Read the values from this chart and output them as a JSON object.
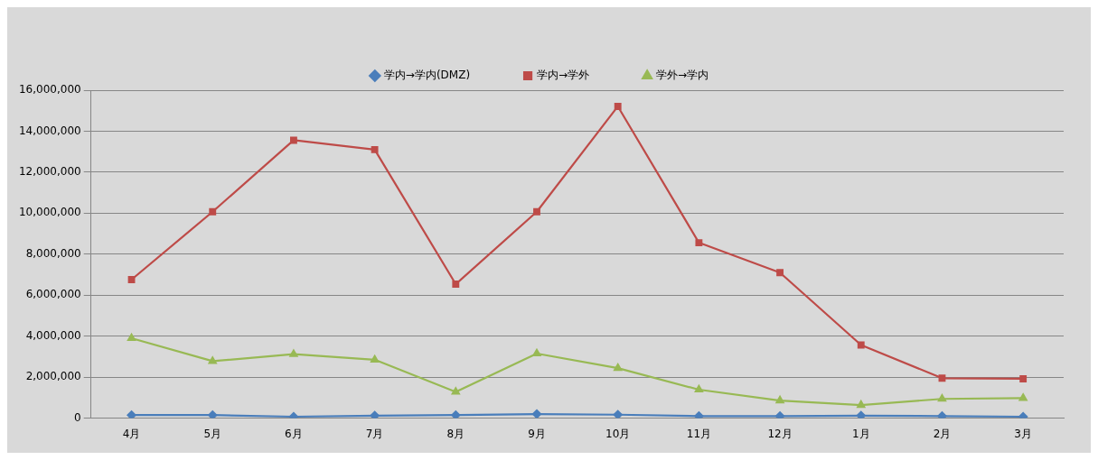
{
  "chart_data": {
    "type": "line",
    "categories": [
      "4月",
      "5月",
      "6月",
      "7月",
      "8月",
      "9月",
      "10月",
      "11月",
      "12月",
      "1月",
      "2月",
      "3月"
    ],
    "series": [
      {
        "name": "学内→学内(DMZ)",
        "color": "#4a7ebb",
        "marker": "diamond",
        "values": [
          150000,
          150000,
          70000,
          120000,
          150000,
          200000,
          170000,
          100000,
          100000,
          120000,
          100000,
          70000
        ]
      },
      {
        "name": "学内→学外",
        "color": "#be4b48",
        "marker": "square",
        "values": [
          6760000,
          10070000,
          13560000,
          13100000,
          6540000,
          10070000,
          15210000,
          8560000,
          7100000,
          3570000,
          1950000,
          1920000
        ]
      },
      {
        "name": "学外→学内",
        "color": "#98b954",
        "marker": "triangle",
        "values": [
          3900000,
          2780000,
          3120000,
          2850000,
          1280000,
          3150000,
          2440000,
          1390000,
          860000,
          640000,
          940000,
          980000
        ]
      }
    ],
    "ylim": [
      0,
      16000000
    ],
    "yticks": [
      0,
      {
        "value": 2000000,
        "label": "2,000,000"
      },
      {
        "value": 4000000,
        "label": "4,000,000"
      },
      {
        "value": 6000000,
        "label": "6,000,000"
      },
      {
        "value": 8000000,
        "label": "8,000,000"
      },
      {
        "value": 10000000,
        "label": "10,000,000"
      },
      {
        "value": 12000000,
        "label": "12,000,000"
      },
      {
        "value": 14000000,
        "label": "14,000,000"
      },
      {
        "value": 16000000,
        "label": "16,000,000"
      }
    ],
    "grid": "y",
    "legend": "top",
    "line_style": "solid"
  }
}
